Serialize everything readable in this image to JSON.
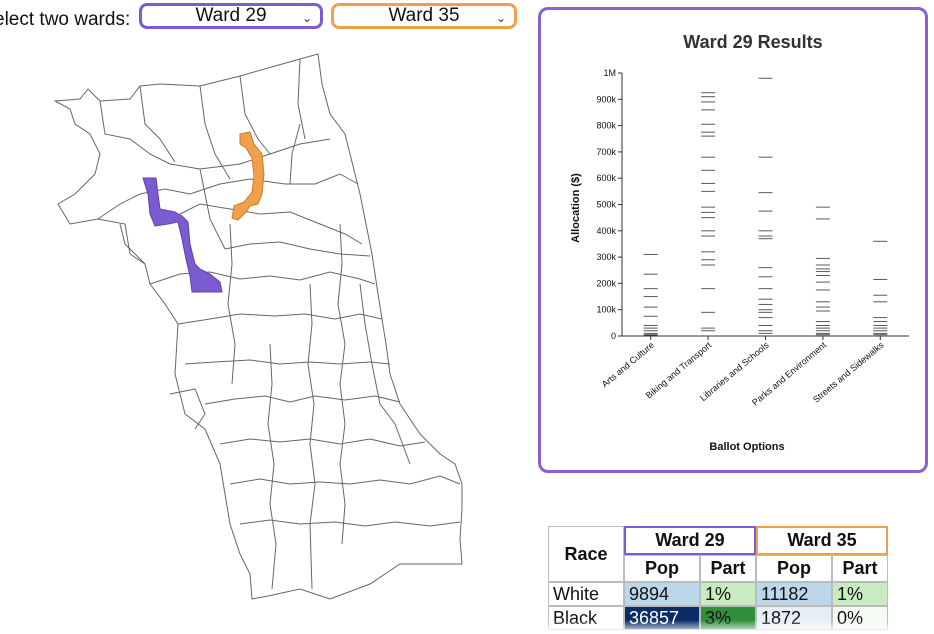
{
  "controls": {
    "label": "elect two wards:",
    "ward_a": "Ward 29",
    "ward_b": "Ward 35",
    "ward_a_color": "#7a5bd1",
    "ward_b_color": "#f0a04b"
  },
  "chart_data": {
    "type": "scatter",
    "title": "Ward 29 Results",
    "xlabel": "Ballot Options",
    "ylabel": "Allocation ($)",
    "categories": [
      "Arts and Culture",
      "Biking and Transport",
      "Libraries and Schools",
      "Parks and Environment",
      "Streets and Sidewalks"
    ],
    "ylim": [
      0,
      1000000
    ],
    "yticks": [
      0,
      100000,
      200000,
      300000,
      400000,
      500000,
      600000,
      700000,
      800000,
      900000,
      1000000
    ],
    "ytick_labels": [
      "0",
      "100k",
      "200k",
      "300k",
      "400k",
      "500k",
      "600k",
      "700k",
      "800k",
      "900k",
      "1M"
    ],
    "values": [
      [
        310000,
        235000,
        180000,
        150000,
        110000,
        75000,
        40000,
        30000,
        20000,
        10000,
        5000,
        2000
      ],
      [
        925000,
        910000,
        890000,
        860000,
        805000,
        775000,
        760000,
        680000,
        630000,
        580000,
        550000,
        490000,
        470000,
        450000,
        400000,
        380000,
        320000,
        290000,
        270000,
        180000,
        90000,
        30000,
        20000
      ],
      [
        980000,
        680000,
        545000,
        475000,
        400000,
        380000,
        370000,
        260000,
        225000,
        180000,
        140000,
        120000,
        100000,
        90000,
        70000,
        40000,
        20000,
        10000
      ],
      [
        490000,
        445000,
        295000,
        270000,
        255000,
        245000,
        230000,
        205000,
        175000,
        130000,
        110000,
        95000,
        55000,
        40000,
        30000,
        20000,
        10000,
        5000
      ],
      [
        360000,
        215000,
        155000,
        130000,
        70000,
        55000,
        40000,
        30000,
        20000,
        10000,
        5000
      ]
    ],
    "mark_color": "#222222"
  },
  "map": {
    "ward_a_color": "#7a5bd1",
    "ward_b_color": "#f0a04b"
  },
  "table": {
    "race_header": "Race",
    "ward_a": "Ward 29",
    "ward_b": "Ward 35",
    "pop_label": "Pop",
    "part_label": "Part",
    "rows": [
      {
        "race": "White",
        "a_pop": "9894",
        "a_part": "1%",
        "b_pop": "11182",
        "b_part": "1%"
      },
      {
        "race": "Black",
        "a_pop": "36857",
        "a_part": "3%",
        "b_pop": "1872",
        "b_part": "0%"
      }
    ]
  }
}
